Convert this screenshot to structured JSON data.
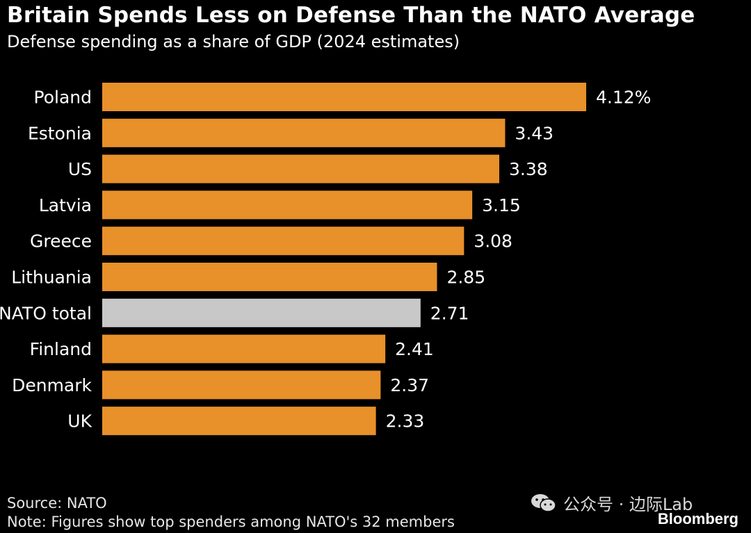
{
  "header": {
    "title": "Britain Spends Less on Defense Than the NATO Average",
    "subtitle": "Defense spending as a share of GDP (2024 estimates)"
  },
  "footer": {
    "source": "Source: NATO",
    "note": "Note: Figures show top spenders among NATO's 32 members",
    "watermark": "公众号 · 边际Lab",
    "watermark_icon": "wechat-icon",
    "brand": "Bloomberg"
  },
  "colors": {
    "background": "#000000",
    "bar": "#E8902A",
    "highlight": "#C8C8C8",
    "text": "#FFFFFF"
  },
  "chart_data": {
    "type": "bar",
    "orientation": "horizontal",
    "title": "Britain Spends Less on Defense Than the NATO Average",
    "subtitle": "Defense spending as a share of GDP (2024 estimates)",
    "categories": [
      "Poland",
      "Estonia",
      "US",
      "Latvia",
      "Greece",
      "Lithuania",
      "NATO total",
      "Finland",
      "Denmark",
      "UK"
    ],
    "values": [
      4.12,
      3.43,
      3.38,
      3.15,
      3.08,
      2.85,
      2.71,
      2.41,
      2.37,
      2.33
    ],
    "value_labels": [
      "4.12%",
      "3.43",
      "3.38",
      "3.15",
      "3.08",
      "2.85",
      "2.71",
      "2.41",
      "2.37",
      "2.33"
    ],
    "highlighted_category": "NATO total",
    "xlim": [
      0,
      4.12
    ],
    "grid": false,
    "legend": "none"
  }
}
